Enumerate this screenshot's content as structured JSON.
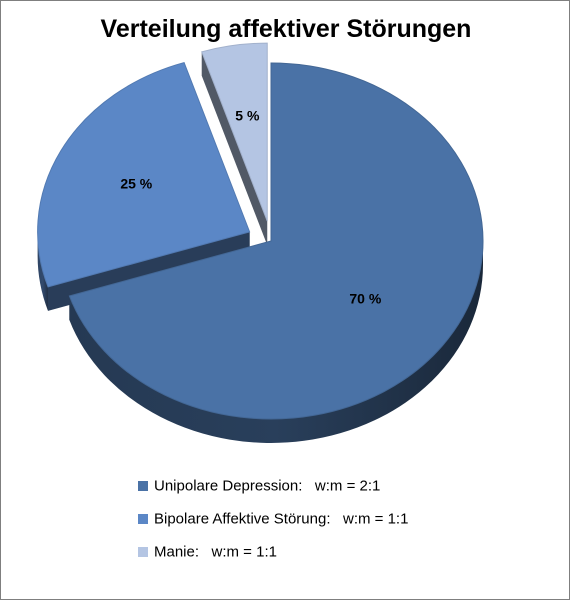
{
  "chart_data": {
    "type": "pie",
    "title": "Verteilung affektiver Störungen",
    "categories": [
      "Unipolare Depression:   w:m = 2:1",
      "Bipolare Affektive Störung:   w:m = 1:1",
      "Manie:   w:m = 1:1"
    ],
    "values": [
      70,
      25,
      5
    ],
    "value_labels": [
      "70 %",
      "25 %",
      "5 %"
    ],
    "exploded": [
      false,
      true,
      true
    ],
    "colors": [
      "#4a72a6",
      "#5b87c6",
      "#b4c5e3"
    ],
    "legend_position": "bottom"
  }
}
